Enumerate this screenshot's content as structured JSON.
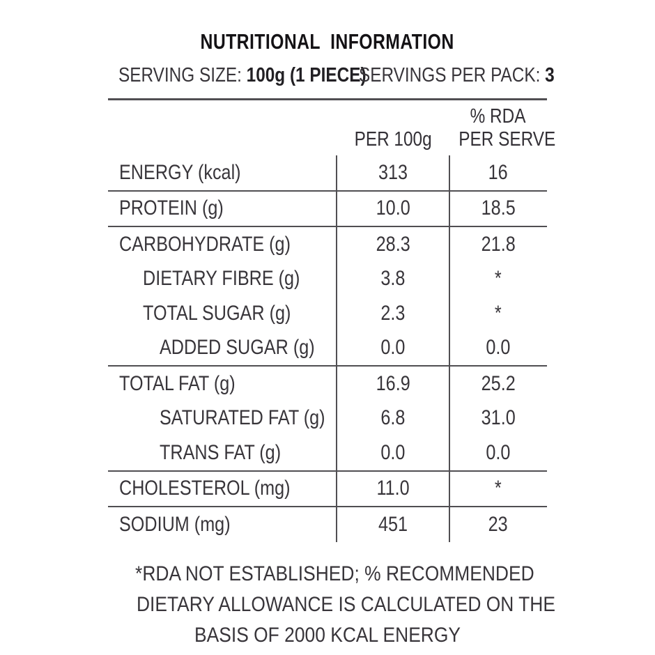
{
  "title": "NUTRITIONAL  INFORMATION",
  "serving": {
    "size_label": "SERVING SIZE: ",
    "size_value": "100g (1 PIECE)",
    "pack_label": "SERVINGS PER PACK: ",
    "pack_value": "3"
  },
  "table": {
    "col_headers": {
      "per_100g": "PER 100g",
      "rda_line1": "% RDA",
      "rda_line2": "PER SERVE"
    },
    "rows": [
      {
        "label": "ENERGY (kcal)",
        "per100g": "313",
        "rda_per_serve": "16",
        "indent": 0
      },
      {
        "label": "PROTEIN (g)",
        "per100g": "10.0",
        "rda_per_serve": "18.5",
        "indent": 0
      },
      {
        "label": "CARBOHYDRATE (g)",
        "per100g": "28.3",
        "rda_per_serve": "21.8",
        "indent": 0
      },
      {
        "label": "DIETARY FIBRE (g)",
        "per100g": "3.8",
        "rda_per_serve": "*",
        "indent": 1
      },
      {
        "label": "TOTAL SUGAR (g)",
        "per100g": "2.3",
        "rda_per_serve": "*",
        "indent": 1
      },
      {
        "label": "ADDED SUGAR (g)",
        "per100g": "0.0",
        "rda_per_serve": "0.0",
        "indent": 2
      },
      {
        "label": "TOTAL FAT (g)",
        "per100g": "16.9",
        "rda_per_serve": "25.2",
        "indent": 0
      },
      {
        "label": "SATURATED FAT (g)",
        "per100g": "6.8",
        "rda_per_serve": "31.0",
        "indent": 2
      },
      {
        "label": "TRANS FAT (g)",
        "per100g": "0.0",
        "rda_per_serve": "0.0",
        "indent": 2
      },
      {
        "label": "CHOLESTEROL (mg)",
        "per100g": "11.0",
        "rda_per_serve": "*",
        "indent": 0
      },
      {
        "label": "SODIUM (mg)",
        "per100g": "451",
        "rda_per_serve": "23",
        "indent": 0
      }
    ]
  },
  "footnote": {
    "lines": [
      "*RDA NOT ESTABLISHED; % RECOMMENDED",
      "DIETARY ALLOWANCE IS CALCULATED ON THE",
      "BASIS OF 2000 KCAL ENERGY"
    ]
  },
  "colors": {
    "background": "#ffffff",
    "text": "#38353a",
    "title_text": "#141215",
    "rule": "#504e52"
  }
}
